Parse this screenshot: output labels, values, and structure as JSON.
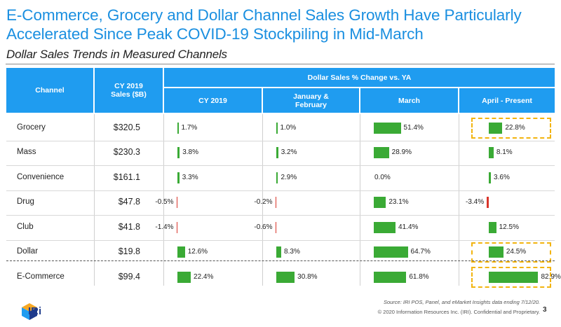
{
  "title": "E-Commerce, Grocery and Dollar Channel Sales Growth Have Particularly Accelerated Since Peak COVID-19 Stockpiling in Mid-March",
  "subtitle": "Dollar Sales Trends in Measured Channels",
  "table": {
    "channel_header": "Channel",
    "sales_header": "CY 2019 Sales ($B)",
    "group_header": "Dollar Sales % Change vs. YA"
  },
  "chart_data": {
    "type": "table",
    "title": "Dollar Sales Trends in Measured Channels",
    "columns": [
      "CY 2019",
      "January & February",
      "March",
      "April - Present"
    ],
    "rows": [
      {
        "channel": "Grocery",
        "sales": "$320.5",
        "values": [
          1.7,
          1.0,
          51.4,
          22.8
        ]
      },
      {
        "channel": "Mass",
        "sales": "$230.3",
        "values": [
          3.8,
          3.2,
          28.9,
          8.1
        ]
      },
      {
        "channel": "Convenience",
        "sales": "$161.1",
        "values": [
          3.3,
          2.9,
          0.0,
          3.6
        ]
      },
      {
        "channel": "Drug",
        "sales": "$47.8",
        "values": [
          -0.5,
          -0.2,
          23.1,
          -3.4
        ]
      },
      {
        "channel": "Club",
        "sales": "$41.8",
        "values": [
          -1.4,
          -0.6,
          41.4,
          12.5
        ]
      },
      {
        "channel": "Dollar",
        "sales": "$19.8",
        "values": [
          12.6,
          8.3,
          64.7,
          24.5
        ]
      },
      {
        "channel": "E-Commerce",
        "sales": "$99.4",
        "values": [
          22.4,
          30.8,
          61.8,
          82.9
        ]
      }
    ],
    "value_labels": [
      [
        "1.7%",
        "1.0%",
        "51.4%",
        "22.8%"
      ],
      [
        "3.8%",
        "3.2%",
        "28.9%",
        "8.1%"
      ],
      [
        "3.3%",
        "2.9%",
        "0.0%",
        "3.6%"
      ],
      [
        "-0.5%",
        "-0.2%",
        "23.1%",
        "-3.4%"
      ],
      [
        "-1.4%",
        "-0.6%",
        "41.4%",
        "12.5%"
      ],
      [
        "12.6%",
        "8.3%",
        "64.7%",
        "24.5%"
      ],
      [
        "22.4%",
        "30.8%",
        "61.8%",
        "82.9%"
      ]
    ],
    "highlighted": [
      [
        0,
        3
      ],
      [
        5,
        3
      ],
      [
        6,
        3
      ]
    ]
  },
  "colors": {
    "header": "#1f9cf0",
    "title": "#1a8fe0",
    "positive": "#3aaa35",
    "negative": "#d9352b",
    "highlight": "#f2b40f"
  },
  "footer": {
    "source": "Source: IRI POS, Panel, and eMarket Insights data ending 7/12/20.",
    "copyright": "© 2020 Information Resources Inc. (IRI). Confidential and Proprietary.",
    "page": "3",
    "logo_text": "IRi"
  }
}
